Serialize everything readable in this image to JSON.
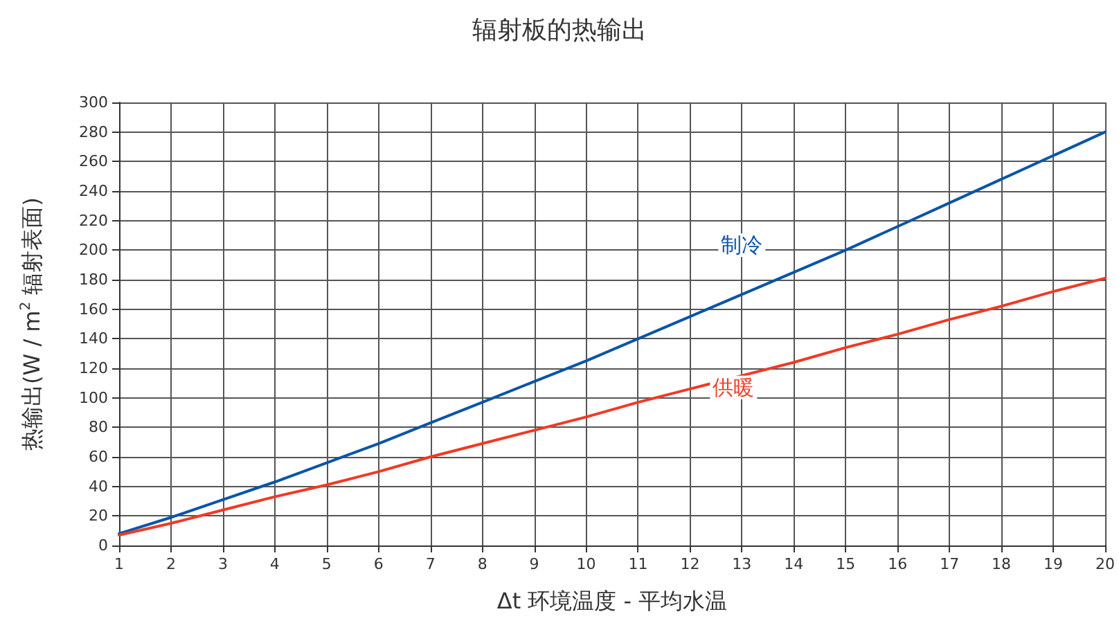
{
  "chart_data": {
    "type": "line",
    "title": "辐射板的热输出",
    "xlabel": "Δt 环境温度 - 平均水温",
    "ylabel": "热输出(W / m$^{2}$ 辐射表面)",
    "x": [
      1,
      2,
      3,
      4,
      5,
      6,
      7,
      8,
      9,
      10,
      11,
      12,
      13,
      14,
      15,
      16,
      17,
      18,
      19,
      20
    ],
    "series": [
      {
        "name": "制冷",
        "color": "#0a55a8",
        "values": [
          8,
          19,
          31,
          43,
          56,
          69,
          83,
          97,
          111,
          125,
          140,
          155,
          170,
          185,
          200,
          216,
          232,
          248,
          264,
          280
        ]
      },
      {
        "name": "供暖",
        "color": "#f03a25",
        "values": [
          7,
          15,
          24,
          33,
          41,
          50,
          60,
          69,
          78,
          87,
          97,
          106,
          115,
          124,
          134,
          143,
          153,
          162,
          172,
          181
        ]
      }
    ],
    "xlim": [
      1,
      20
    ],
    "xticks": [
      1,
      2,
      3,
      4,
      5,
      6,
      7,
      8,
      9,
      10,
      11,
      12,
      13,
      14,
      15,
      16,
      17,
      18,
      19,
      20
    ],
    "ylim": [
      0,
      300
    ],
    "yticks": [
      0,
      20,
      40,
      60,
      80,
      100,
      120,
      140,
      160,
      180,
      200,
      220,
      240,
      260,
      280,
      300
    ],
    "grid": true,
    "legend": false,
    "marker": "none",
    "line_style": "solid"
  }
}
